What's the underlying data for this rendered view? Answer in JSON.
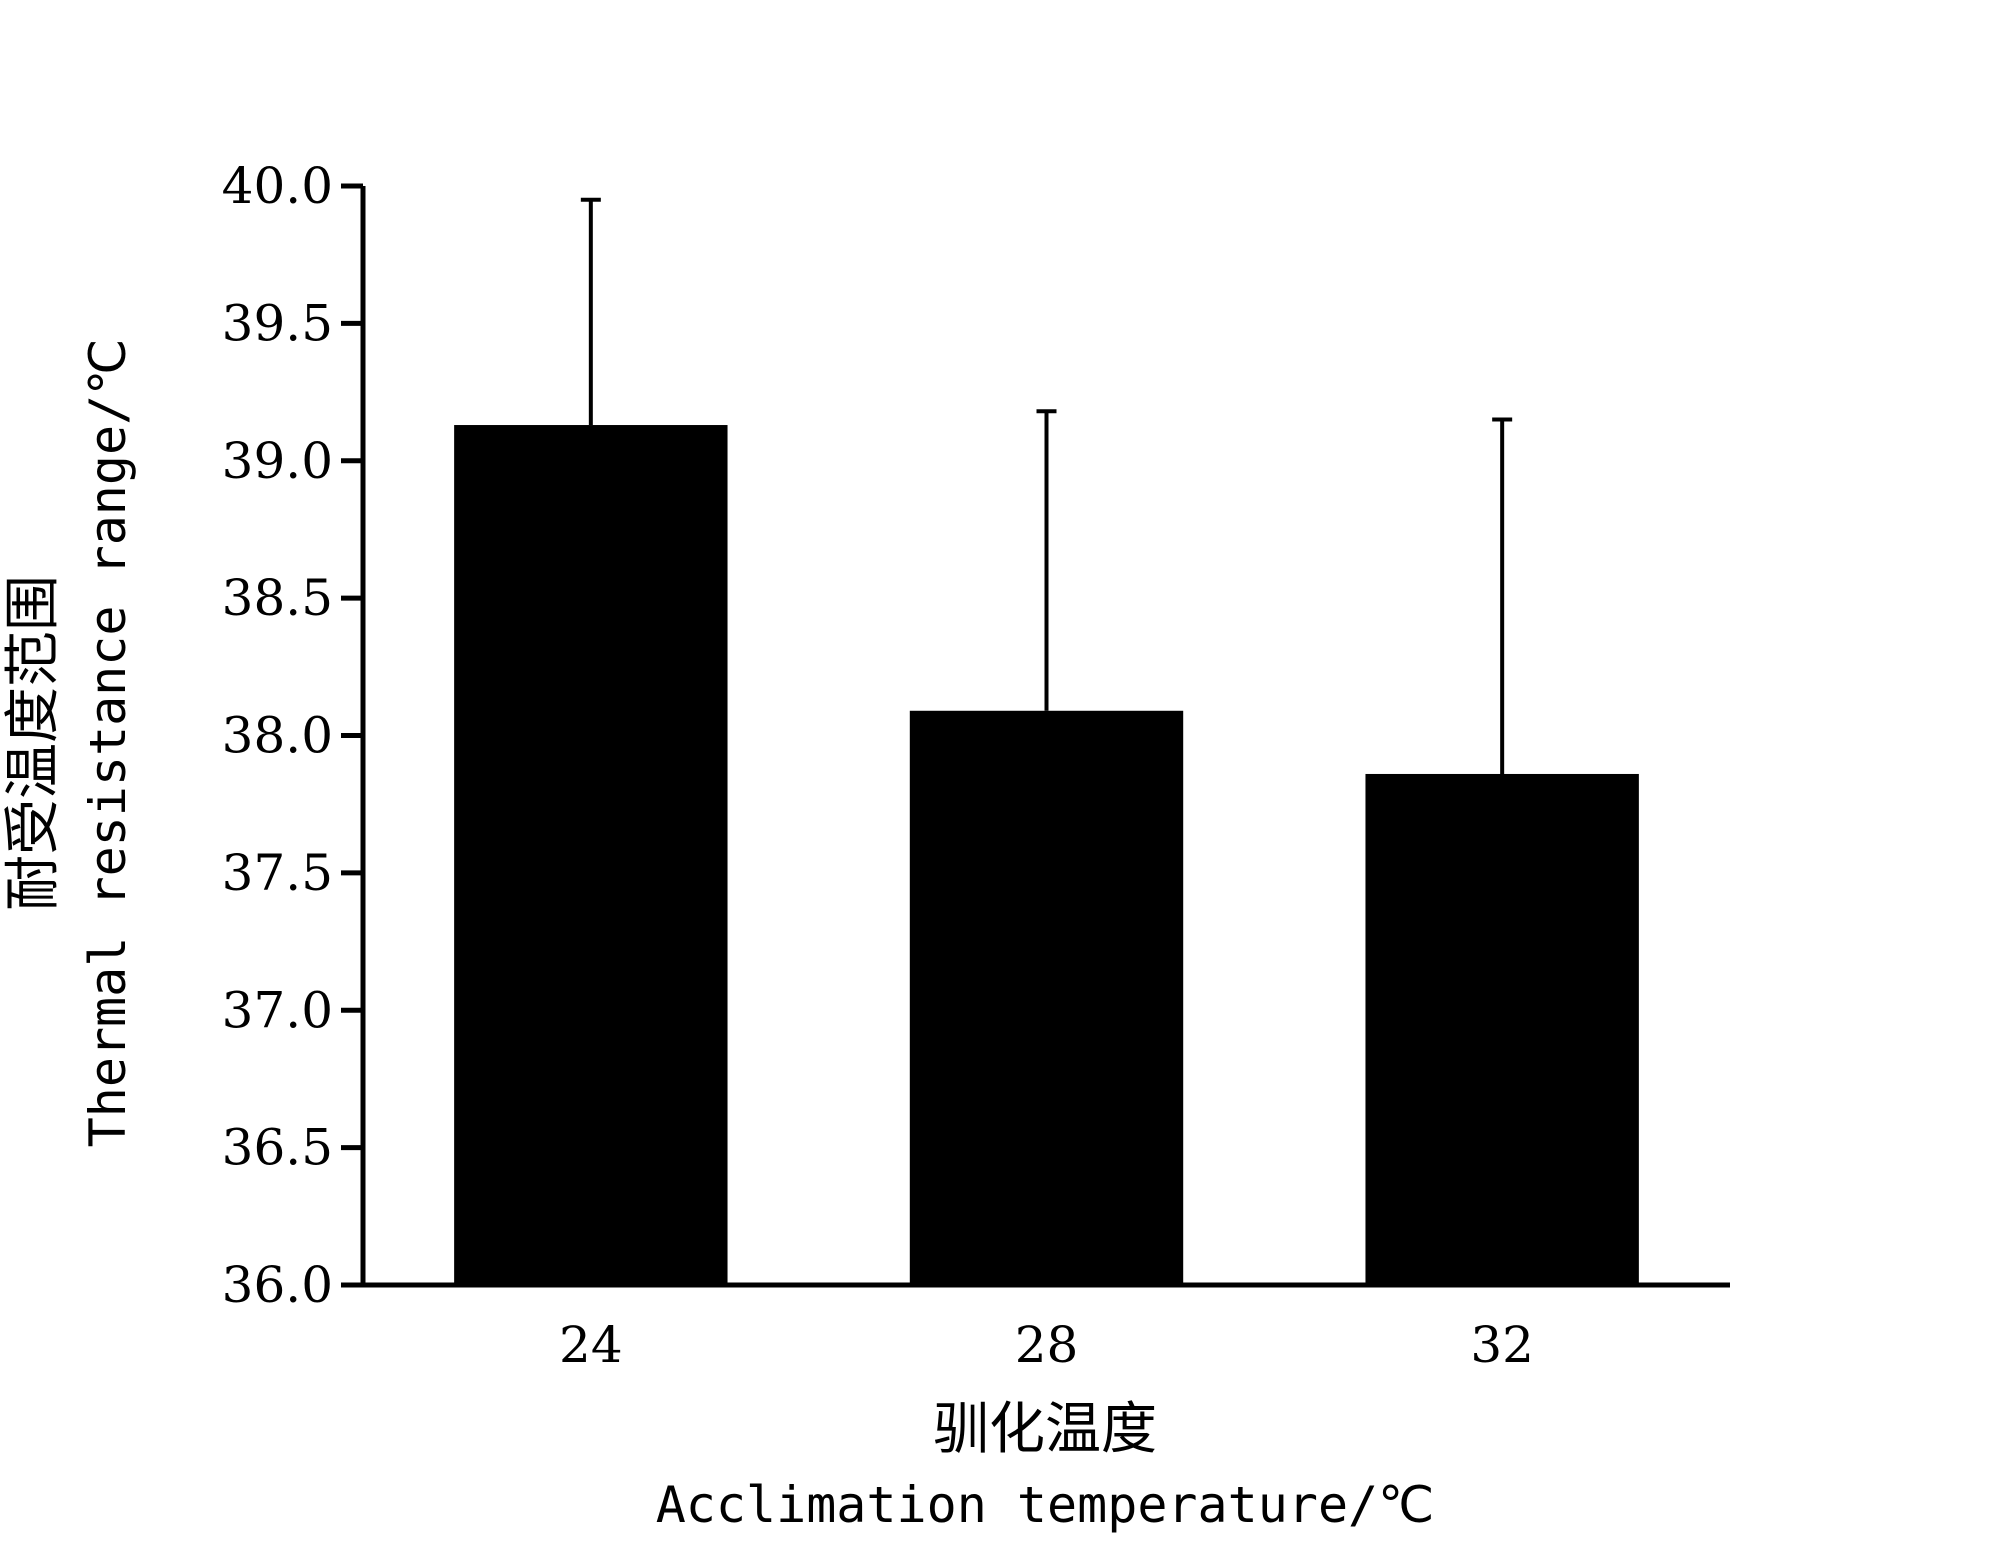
{
  "chart_data": {
    "type": "bar",
    "categories": [
      "24",
      "28",
      "32"
    ],
    "values": [
      39.13,
      38.09,
      37.86
    ],
    "error_plus": [
      0.82,
      1.09,
      1.29
    ],
    "ylim": [
      36.0,
      40.0
    ],
    "yticks": [
      "36.0",
      "36.5",
      "37.0",
      "37.5",
      "38.0",
      "38.5",
      "39.0",
      "39.5",
      "40.0"
    ],
    "ytick_values": [
      36.0,
      36.5,
      37.0,
      37.5,
      38.0,
      38.5,
      39.0,
      39.5,
      40.0
    ],
    "xlabel_zh": "驯化温度",
    "xlabel_en": "Acclimation temperature/℃",
    "ylabel_zh": "耐受温度范围",
    "ylabel_en": "Thermal resistance range/℃",
    "bar_color": "#000000",
    "grid": false,
    "legend": "none"
  }
}
